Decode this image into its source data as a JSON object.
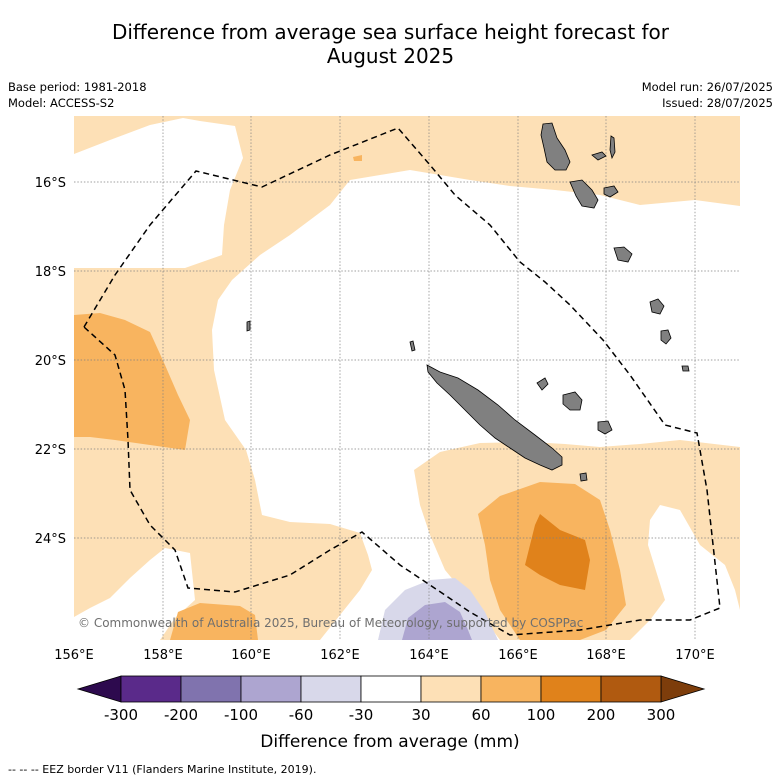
{
  "title_line1": "Difference from average sea surface height forecast for",
  "title_line2": "August 2025",
  "base_period": "Base period: 1981-2018",
  "model": "Model: ACCESS-S2",
  "model_run": "Model run: 26/07/2025",
  "issued": "Issued: 28/07/2025",
  "copyright": "© Commonwealth of Australia 2025, Bureau of Meteorology, supported by COSPPac",
  "footer": "--  --  -- EEZ border V11 (Flanders Marine Institute, 2019).",
  "map": {
    "lon_range": [
      156,
      171
    ],
    "lat_range": [
      -26.3,
      -14.5
    ],
    "lon_ticks": [
      "156°E",
      "158°E",
      "160°E",
      "162°E",
      "164°E",
      "166°E",
      "168°E",
      "170°E"
    ],
    "lat_ticks": [
      "16°S",
      "18°S",
      "20°S",
      "22°S",
      "24°S"
    ],
    "colors": {
      "ocean_neutral": "#ffffff",
      "pos_30_60": "#fde0b6",
      "pos_60_100": "#f8b45f",
      "pos_100_200": "#e0821b",
      "neg_60_30": "#d8d8ea",
      "neg_100_60": "#ada5d0",
      "land": "#808080",
      "eez_line": "#000000"
    }
  },
  "colorbar": {
    "title": "Difference from average (mm)",
    "labels": [
      "-300",
      "-200",
      "-100",
      "-60",
      "-30",
      "30",
      "60",
      "100",
      "200",
      "300"
    ],
    "under_color": "#2d0a4e",
    "over_color": "#7d3d0b",
    "colors": [
      "#5a2a8a",
      "#8073ae",
      "#ada5d0",
      "#d8d8ea",
      "#ffffff",
      "#fde0b6",
      "#f8b45f",
      "#e0821b",
      "#b05a10"
    ]
  }
}
